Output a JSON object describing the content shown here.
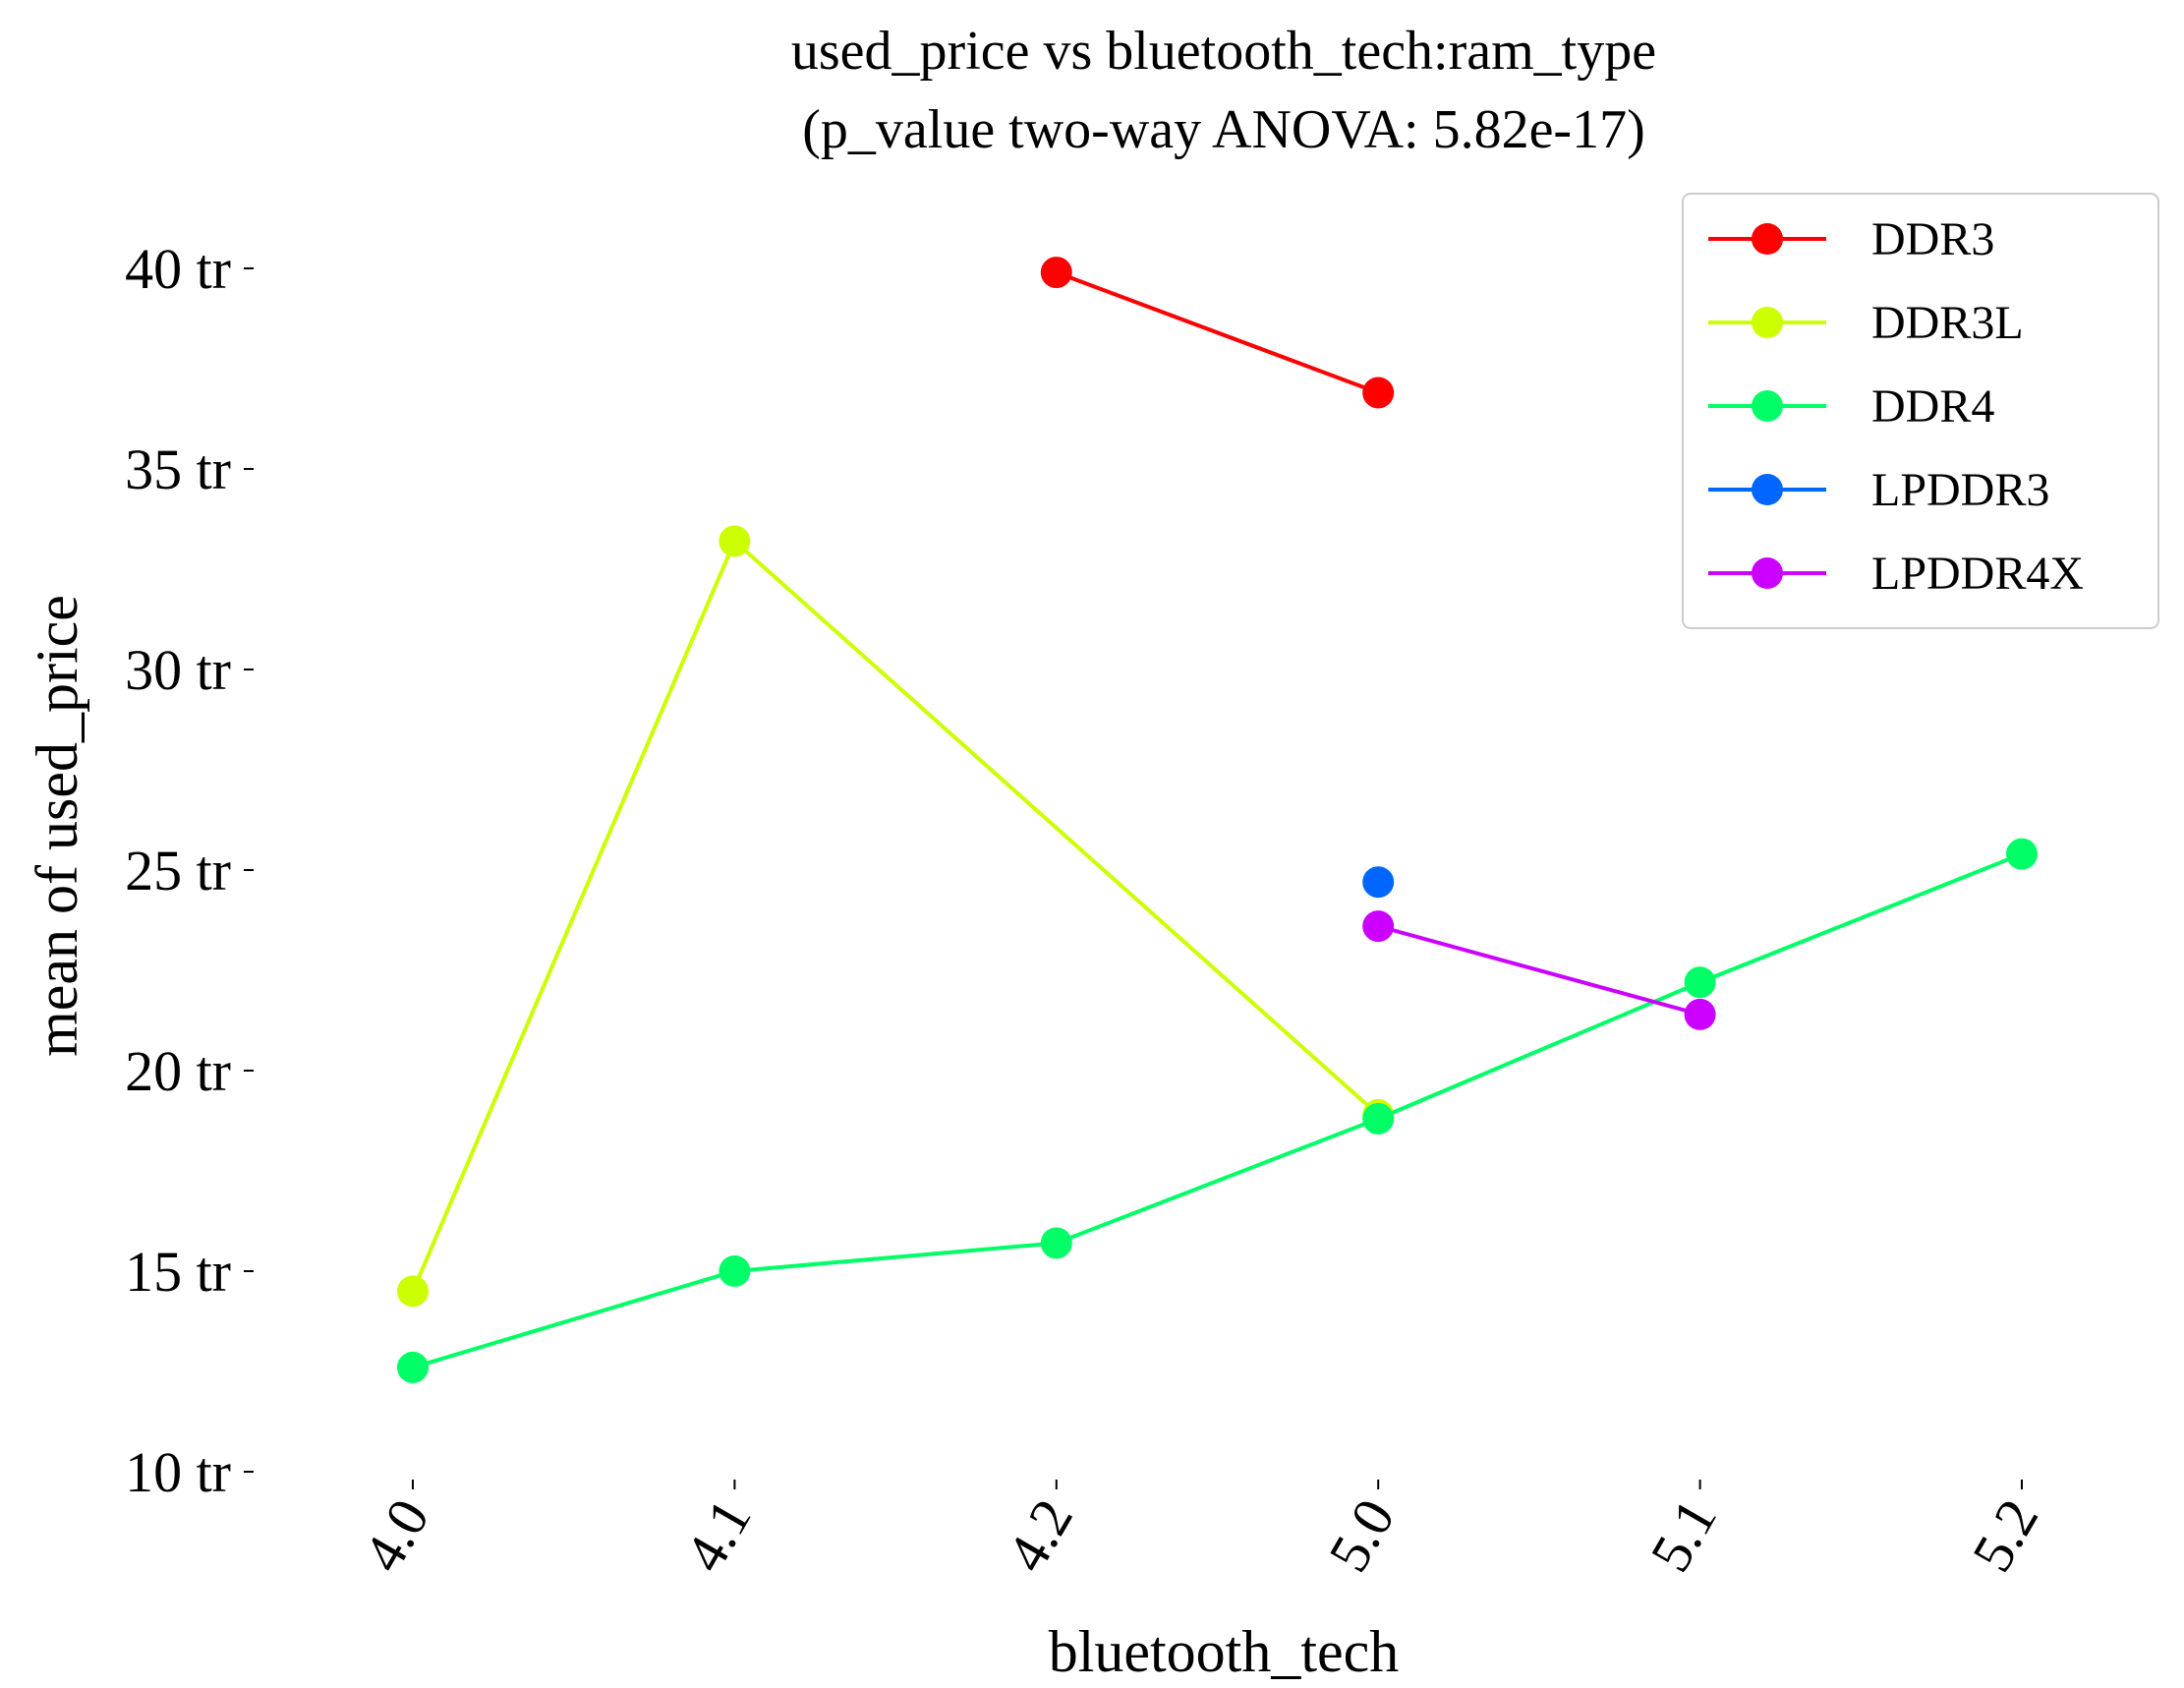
{
  "chart_data": {
    "type": "line",
    "title": [
      "used_price vs bluetooth_tech:ram_type",
      "(p_value two-way ANOVA: 5.82e-17)"
    ],
    "xlabel": "bluetooth_tech",
    "ylabel": "mean of used_price",
    "categories": [
      "4.0",
      "4.1",
      "4.2",
      "5.0",
      "5.1",
      "5.2"
    ],
    "ylim": [
      10,
      40
    ],
    "yticks": [
      10,
      15,
      20,
      25,
      30,
      35,
      40
    ],
    "ytick_labels": [
      "10 tr",
      "15 tr",
      "20 tr",
      "25 tr",
      "30 tr",
      "35 tr",
      "40 tr"
    ],
    "grid": false,
    "legend_position": "top-right",
    "series": [
      {
        "name": "DDR3",
        "color": "#ff0000",
        "values": [
          null,
          null,
          39.9,
          36.9,
          null,
          null
        ]
      },
      {
        "name": "DDR3L",
        "color": "#ccff00",
        "values": [
          14.5,
          33.2,
          null,
          18.9,
          null,
          null
        ]
      },
      {
        "name": "DDR4",
        "color": "#00ff66",
        "values": [
          12.6,
          15.0,
          15.7,
          18.8,
          22.2,
          25.4
        ]
      },
      {
        "name": "LPDDR3",
        "color": "#0066ff",
        "values": [
          null,
          null,
          null,
          24.7,
          null,
          null
        ]
      },
      {
        "name": "LPDDR4X",
        "color": "#cc00ff",
        "values": [
          null,
          null,
          null,
          23.6,
          21.4,
          null
        ]
      }
    ]
  }
}
